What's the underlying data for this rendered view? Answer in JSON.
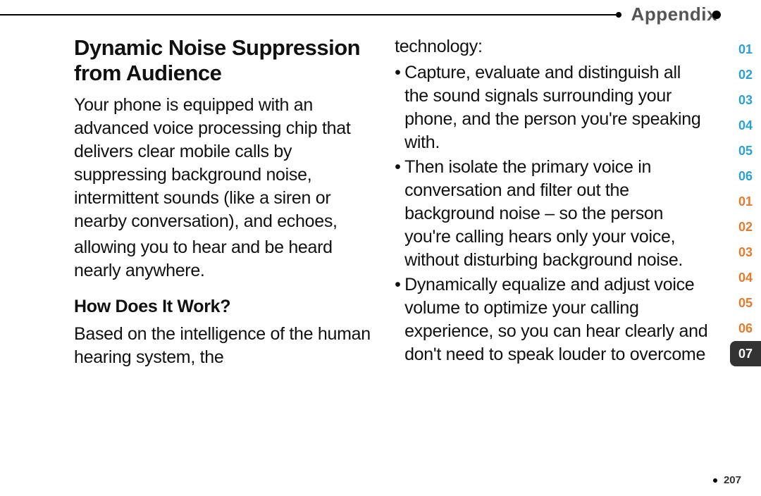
{
  "header": {
    "label": "Appendix"
  },
  "content": {
    "title": "Dynamic Noise Suppression from Audience",
    "para1": "Your phone is equipped with an advanced voice processing chip that delivers clear mobile calls by suppressing background noise, intermittent sounds (like a siren or nearby conversation), and echoes,",
    "para2": "allowing you to hear and be heard nearly anywhere.",
    "subtitle": "How Does It Work?",
    "para3": "Based on the intelligence of the human hearing system, the",
    "col2_lead": "technology:",
    "bullets": [
      "Capture, evaluate and distinguish all the sound signals surrounding your phone, and the person you're speaking with.",
      "Then isolate the primary voice in conversation and filter out the background noise – so the person you're calling hears only your voice, without disturbing background noise.",
      "Dynamically equalize and adjust voice volume to optimize your calling experience, so you can hear clearly and don't need to speak louder to overcome"
    ]
  },
  "tabs": [
    {
      "label": "01",
      "style": "blue"
    },
    {
      "label": "02",
      "style": "blue"
    },
    {
      "label": "03",
      "style": "blue"
    },
    {
      "label": "04",
      "style": "blue"
    },
    {
      "label": "05",
      "style": "blue"
    },
    {
      "label": "06",
      "style": "blue"
    },
    {
      "label": "01",
      "style": "orange"
    },
    {
      "label": "02",
      "style": "orange"
    },
    {
      "label": "03",
      "style": "orange"
    },
    {
      "label": "04",
      "style": "orange"
    },
    {
      "label": "05",
      "style": "orange"
    },
    {
      "label": "06",
      "style": "orange"
    },
    {
      "label": "07",
      "style": "active"
    }
  ],
  "page_number": "207"
}
